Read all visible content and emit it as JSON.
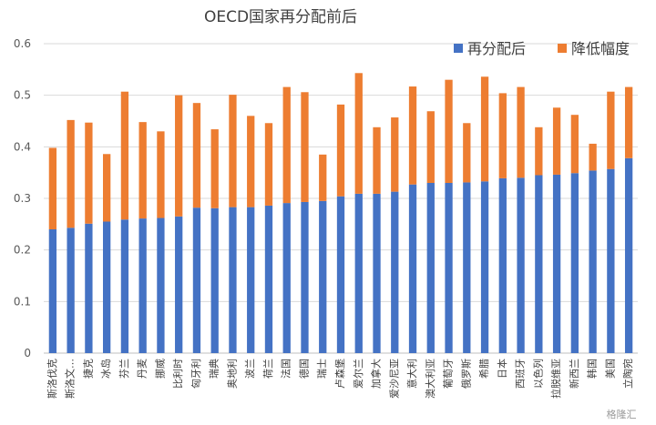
{
  "chart_data": {
    "type": "bar",
    "stacked": true,
    "title": "OECD国家再分配前后",
    "xlabel": "",
    "ylabel": "",
    "ylim": [
      0,
      0.6
    ],
    "yticks": [
      "0",
      "0.1",
      "0.2",
      "0.3",
      "0.4",
      "0.5",
      "0.6"
    ],
    "grid": true,
    "legend_position": "top-right",
    "categories": [
      "斯洛伐克",
      "斯洛文尼亚",
      "捷克",
      "冰岛",
      "芬兰",
      "丹麦",
      "挪威",
      "比利时",
      "匈牙利",
      "瑞典",
      "奥地利",
      "波兰",
      "荷兰",
      "法国",
      "德国",
      "瑞士",
      "卢森堡",
      "爱尔兰",
      "加拿大",
      "爱沙尼亚",
      "意大利",
      "澳大利亚",
      "葡萄牙",
      "俄罗斯",
      "希腊",
      "日本",
      "西班牙",
      "以色列",
      "拉脱维亚",
      "新西兰",
      "韩国",
      "美国",
      "立陶宛"
    ],
    "category_labels": [
      "斯洛伐克",
      "斯洛文…",
      "捷克",
      "冰岛",
      "芬兰",
      "丹麦",
      "挪威",
      "比利时",
      "匈牙利",
      "瑞典",
      "奥地利",
      "波兰",
      "荷兰",
      "法国",
      "德国",
      "瑞士",
      "卢森堡",
      "爱尔兰",
      "加拿大",
      "爱沙尼亚",
      "意大利",
      "澳大利亚",
      "葡萄牙",
      "俄罗斯",
      "希腊",
      "日本",
      "西班牙",
      "以色列",
      "拉脱维亚",
      "新西兰",
      "韩国",
      "美国",
      "立陶宛"
    ],
    "series": [
      {
        "name": "再分配后",
        "color": "#4472C4",
        "values": [
          0.24,
          0.243,
          0.251,
          0.255,
          0.259,
          0.261,
          0.262,
          0.265,
          0.282,
          0.281,
          0.283,
          0.283,
          0.286,
          0.291,
          0.293,
          0.295,
          0.304,
          0.309,
          0.309,
          0.313,
          0.327,
          0.33,
          0.33,
          0.331,
          0.333,
          0.339,
          0.34,
          0.345,
          0.346,
          0.349,
          0.354,
          0.357,
          0.378
        ]
      },
      {
        "name": "降低幅度",
        "color": "#ED7D31",
        "values": [
          0.158,
          0.209,
          0.196,
          0.131,
          0.248,
          0.187,
          0.168,
          0.235,
          0.203,
          0.153,
          0.218,
          0.177,
          0.16,
          0.225,
          0.213,
          0.09,
          0.178,
          0.234,
          0.129,
          0.144,
          0.19,
          0.139,
          0.2,
          0.115,
          0.203,
          0.165,
          0.176,
          0.093,
          0.13,
          0.113,
          0.052,
          0.15,
          0.138
        ]
      }
    ]
  },
  "watermark": "格隆汇"
}
